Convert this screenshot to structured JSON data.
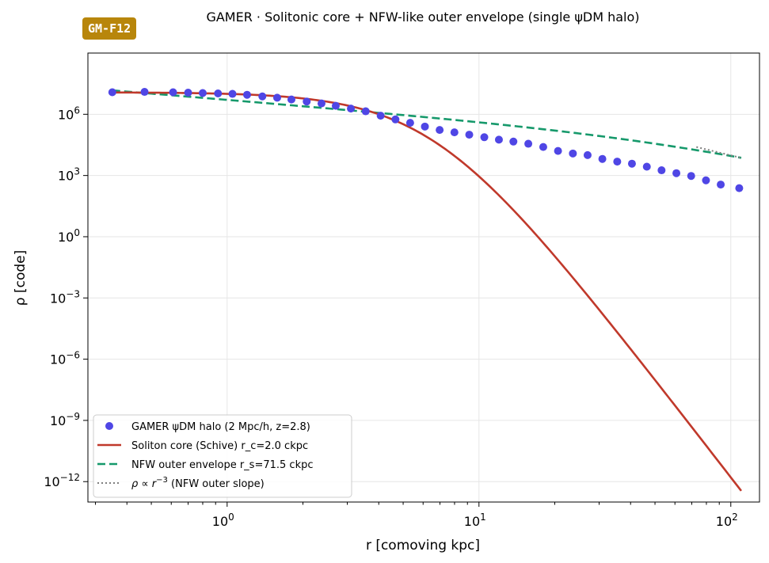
{
  "badge": "GM-F12",
  "chart_data": {
    "type": "line",
    "title": "GAMER · Solitonic core + NFW-like outer envelope (single ψDM halo)",
    "xlabel": "r  [comoving kpc]",
    "ylabel": "ρ  [code]",
    "xscale": "log",
    "yscale": "log",
    "xlim": [
      0.28,
      130
    ],
    "ylim": [
      1e-13,
      1000000000.0
    ],
    "x_ticks": [
      {
        "base": "10",
        "exp": "0",
        "value": 1
      },
      {
        "base": "10",
        "exp": "1",
        "value": 10
      },
      {
        "base": "10",
        "exp": "2",
        "value": 100
      }
    ],
    "y_ticks": [
      {
        "base": "10",
        "exp": "6",
        "value": 1000000.0
      },
      {
        "base": "10",
        "exp": "3",
        "value": 1000.0
      },
      {
        "base": "10",
        "exp": "0",
        "value": 1
      },
      {
        "base": "10",
        "exp": "−3",
        "value": 0.001
      },
      {
        "base": "10",
        "exp": "−6",
        "value": 1e-06
      },
      {
        "base": "10",
        "exp": "−9",
        "value": 1e-09
      },
      {
        "base": "10",
        "exp": "−12",
        "value": 1e-12
      }
    ],
    "grid": true,
    "legend_position": "lower-left",
    "colors": {
      "halo": "#4f46e5",
      "soliton": "#c0392b",
      "nfw": "#16996b",
      "slope": "#7f7f7f"
    },
    "series": [
      {
        "name": "GAMER ψDM halo (2 Mpc/h, z=2.8)",
        "style": "scatter",
        "x": [
          0.35,
          0.47,
          0.61,
          0.7,
          0.8,
          0.92,
          1.05,
          1.2,
          1.38,
          1.58,
          1.8,
          2.07,
          2.37,
          2.7,
          3.1,
          3.55,
          4.07,
          4.66,
          5.33,
          6.1,
          6.98,
          7.99,
          9.15,
          10.5,
          12.0,
          13.7,
          15.7,
          18.0,
          20.6,
          23.6,
          27.0,
          30.9,
          35.4,
          40.5,
          46.4,
          53.1,
          60.8,
          69.6,
          79.7,
          91.2,
          108
        ],
        "y": [
          12000000.0,
          12500000.0,
          12000000.0,
          11500000.0,
          11000000.0,
          10500000.0,
          10000000.0,
          9000000.0,
          7500000.0,
          6500000.0,
          5300000.0,
          4200000.0,
          3400000.0,
          2600000.0,
          1900000.0,
          1400000.0,
          850000.0,
          560000.0,
          380000.0,
          250000.0,
          170000.0,
          130000.0,
          100000.0,
          75000.0,
          57000.0,
          46000.0,
          36000.0,
          25000.0,
          16000.0,
          12000.0,
          10000.0,
          6500.0,
          4800.0,
          3800.0,
          2700.0,
          1800.0,
          1300.0,
          950.0,
          580.0,
          360.0,
          240.0
        ]
      },
      {
        "name": "Soliton core (Schive) r_c=2.0 ckpc",
        "style": "solid",
        "rho0": 12000000.0,
        "rc": 2.0,
        "x_range": [
          0.35,
          110
        ]
      },
      {
        "name": "NFW outer envelope r_s=71.5 ckpc",
        "style": "dashed",
        "rho_s": 73000.0,
        "rs": 71.5,
        "x_range": [
          0.35,
          110
        ]
      },
      {
        "name": "ρ ∝ r⁻³ (NFW outer slope)",
        "style": "dotted",
        "x": [
          73,
          110
        ],
        "y": [
          25000.0,
          7300.0
        ]
      }
    ],
    "legend": [
      {
        "text": "GAMER ψDM halo (2 Mpc/h, z=2.8)"
      },
      {
        "text": "Soliton core (Schive) r_c=2.0 ckpc"
      },
      {
        "text": "NFW outer envelope r_s=71.5 ckpc"
      },
      {
        "text_prefix": "ρ ∝ r",
        "text_sup": "−3",
        "text_suffix": " (NFW outer slope)"
      }
    ]
  }
}
